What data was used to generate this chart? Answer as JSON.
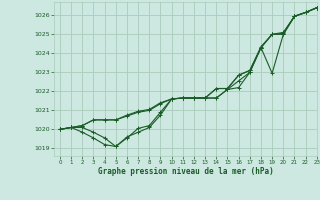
{
  "bg_color": "#cce8e0",
  "grid_color": "#aaccbb",
  "line_color": "#1a5c28",
  "text_color": "#1a5c28",
  "xlabel": "Graphe pression niveau de la mer (hPa)",
  "xlim": [
    -0.5,
    23
  ],
  "ylim": [
    1018.6,
    1026.7
  ],
  "yticks": [
    1019,
    1020,
    1021,
    1022,
    1023,
    1024,
    1025,
    1026
  ],
  "xticks": [
    0,
    1,
    2,
    3,
    4,
    5,
    6,
    7,
    8,
    9,
    10,
    11,
    12,
    13,
    14,
    15,
    16,
    17,
    18,
    19,
    20,
    21,
    22,
    23
  ],
  "series": [
    [
      1020.0,
      1020.1,
      1020.1,
      1019.85,
      1019.55,
      1019.1,
      1019.55,
      1020.05,
      1020.2,
      1020.9,
      1021.6,
      1021.65,
      1021.65,
      1021.65,
      1021.65,
      1022.1,
      1022.2,
      1023.0,
      1024.3,
      1022.95,
      1025.0,
      1025.95,
      1026.15,
      1026.4
    ],
    [
      1020.0,
      1020.1,
      1019.85,
      1019.55,
      1019.2,
      1019.1,
      1019.6,
      1019.85,
      1020.1,
      1020.75,
      1021.6,
      1021.65,
      1021.65,
      1021.65,
      1021.65,
      1022.1,
      1022.55,
      1023.0,
      1024.3,
      1025.0,
      1025.1,
      1025.95,
      1026.15,
      1026.4
    ],
    [
      1020.0,
      1020.1,
      1020.2,
      1020.5,
      1020.5,
      1020.5,
      1020.7,
      1020.9,
      1021.0,
      1021.35,
      1021.6,
      1021.65,
      1021.65,
      1021.65,
      1022.15,
      1022.15,
      1022.85,
      1023.1,
      1024.3,
      1025.0,
      1025.05,
      1025.95,
      1026.15,
      1026.4
    ],
    [
      1020.0,
      1020.1,
      1020.2,
      1020.5,
      1020.5,
      1020.5,
      1020.75,
      1020.95,
      1021.05,
      1021.4,
      1021.6,
      1021.65,
      1021.65,
      1021.65,
      1022.15,
      1022.15,
      1022.85,
      1023.1,
      1024.35,
      1025.0,
      1025.0,
      1025.95,
      1026.15,
      1026.4
    ]
  ]
}
